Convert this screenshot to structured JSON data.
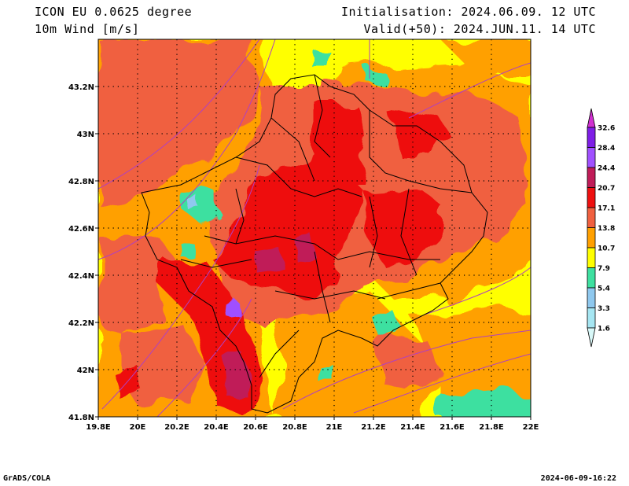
{
  "header": {
    "title_line1": "ICON EU 0.0625 degree",
    "title_line2": "10m Wind [m/s]",
    "init": "Initialisation: 2024.06.09. 12 UTC",
    "valid": "Valid(+50): 2024.JUN.11. 14 UTC"
  },
  "footer": {
    "credit": "GrADS/COLA",
    "timestamp": "2024-06-09-16:22"
  },
  "map": {
    "lon_range": [
      19.8,
      22.0
    ],
    "lat_range": [
      41.8,
      43.4
    ],
    "lon_ticks": [
      "19.8E",
      "20E",
      "20.2E",
      "20.4E",
      "20.6E",
      "20.8E",
      "21E",
      "21.2E",
      "21.4E",
      "21.6E",
      "21.8E",
      "22E"
    ],
    "lat_ticks": [
      "41.8N",
      "42N",
      "42.2N",
      "42.4N",
      "42.6N",
      "42.8N",
      "43N",
      "43.2N"
    ],
    "grid": "dotted"
  },
  "colorbar": {
    "levels": [
      "1.6",
      "3.3",
      "5.4",
      "7.9",
      "10.7",
      "13.8",
      "17.1",
      "20.7",
      "24.4",
      "28.4",
      "32.6"
    ],
    "colors": [
      "#d8f8f8",
      "#a6e6f2",
      "#8fc8ee",
      "#3ee0a0",
      "#ffff00",
      "#ffa000",
      "#f06040",
      "#ee1010",
      "#c01c58",
      "#a050ff",
      "#7e1ee6",
      "#d030d0"
    ]
  }
}
